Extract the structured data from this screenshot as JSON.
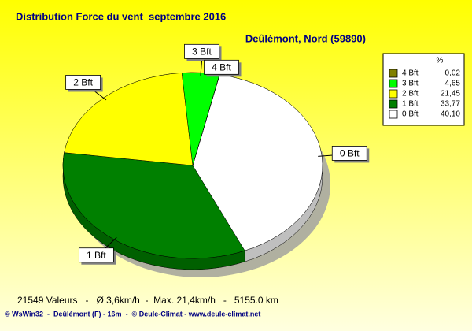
{
  "chart_data": {
    "type": "pie",
    "title": "Distribution Force du vent  septembre 2016",
    "subtitle": "Deûlémont, Nord (59890)",
    "categories": [
      "4 Bft",
      "3 Bft",
      "2 Bft",
      "1 Bft",
      "0 Bft"
    ],
    "values": [
      0.02,
      4.65,
      21.45,
      33.77,
      40.1
    ],
    "value_labels": [
      "0,02",
      "4,65",
      "21,45",
      "33,77",
      "40,10"
    ],
    "colors": [
      "#808000",
      "#00ff00",
      "#ffff00",
      "#008000",
      "#ffffff"
    ],
    "legend_title": "%",
    "legend": "top-right",
    "annotations": [
      "21549 Valeurs   -   Ø 3,6km/h  -  Max. 21,4km/h   -   5155.0 km",
      "© WsWin32  -  Deûlémont (F) - 16m  -  © Deule-Climat - www.deule-climat.net"
    ]
  }
}
